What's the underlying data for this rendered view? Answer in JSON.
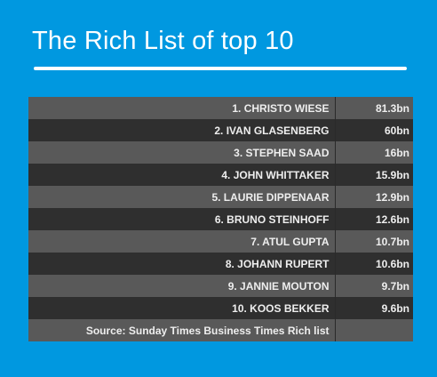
{
  "title": "The Rich List of top 10",
  "chart_data": {
    "type": "table",
    "title": "The Rich List of top 10",
    "rows": [
      {
        "name": "1. CHRISTO WIESE",
        "value": "81.3bn"
      },
      {
        "name": "2. IVAN GLASENBERG",
        "value": "60bn"
      },
      {
        "name": "3. STEPHEN SAAD",
        "value": "16bn"
      },
      {
        "name": "4. JOHN WHITTAKER",
        "value": "15.9bn"
      },
      {
        "name": "5. LAURIE DIPPENAAR",
        "value": "12.9bn"
      },
      {
        "name": "6. BRUNO STEINHOFF",
        "value": "12.6bn"
      },
      {
        "name": "7. ATUL GUPTA",
        "value": "10.7bn"
      },
      {
        "name": "8. JOHANN RUPERT",
        "value": "10.6bn"
      },
      {
        "name": "9. JANNIE MOUTON",
        "value": "9.7bn"
      },
      {
        "name": "10. KOOS BEKKER",
        "value": "9.6bn"
      }
    ],
    "source": "Source: Sunday Times Business Times Rich list"
  },
  "colors": {
    "background": "#0098e0",
    "row_light": "#595959",
    "row_dark": "#2f2f2f",
    "text": "#eeeeee"
  }
}
